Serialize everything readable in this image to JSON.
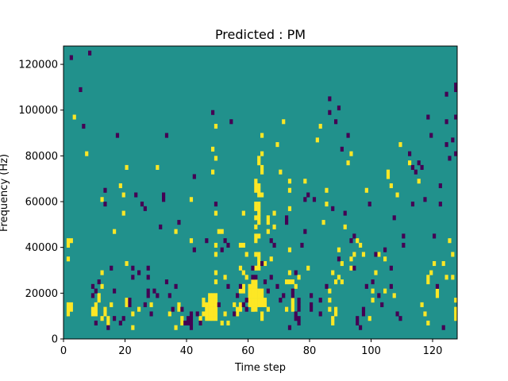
{
  "chart_data": {
    "type": "heatmap",
    "title": "Predicted : PM",
    "xlabel": "Time step",
    "ylabel": "Frequency (Hz)",
    "xlim": [
      0,
      128
    ],
    "ylim": [
      0,
      128000
    ],
    "xticks": [
      0,
      20,
      40,
      60,
      80,
      100,
      120
    ],
    "yticks": [
      0,
      20000,
      40000,
      60000,
      80000,
      100000,
      120000
    ],
    "xtick_labels": [
      "0",
      "20",
      "40",
      "60",
      "80",
      "100",
      "120"
    ],
    "ytick_labels": [
      "0",
      "20000",
      "40000",
      "60000",
      "80000",
      "100000",
      "120000"
    ],
    "grid": false,
    "legend": "none",
    "colors": {
      "background_value": "#21918c",
      "high_value": "#fde725",
      "low_value": "#440154",
      "frame": "#000000"
    },
    "cell_size": {
      "time_steps": 1,
      "frequency_hz": 2000
    },
    "yellow_cells": [
      [
        1,
        42
      ],
      [
        2,
        42
      ],
      [
        1,
        40
      ],
      [
        1,
        34
      ],
      [
        1,
        14
      ],
      [
        2,
        14
      ],
      [
        1,
        12
      ],
      [
        2,
        12
      ],
      [
        1,
        10
      ],
      [
        3,
        96
      ],
      [
        7,
        80
      ],
      [
        9,
        12
      ],
      [
        10,
        12
      ],
      [
        9,
        10
      ],
      [
        10,
        10
      ],
      [
        10,
        14
      ],
      [
        11,
        16
      ],
      [
        11,
        18
      ],
      [
        12,
        28
      ],
      [
        12,
        22
      ],
      [
        12,
        60
      ],
      [
        12,
        8
      ],
      [
        13,
        12
      ],
      [
        13,
        10
      ],
      [
        14,
        6
      ],
      [
        14,
        8
      ],
      [
        15,
        14
      ],
      [
        19,
        62
      ],
      [
        20,
        14
      ],
      [
        20,
        16
      ],
      [
        18,
        66
      ],
      [
        16,
        46
      ],
      [
        19,
        54
      ],
      [
        20,
        32
      ],
      [
        20,
        74
      ],
      [
        22,
        4
      ],
      [
        22,
        10
      ],
      [
        24,
        12
      ],
      [
        28,
        14
      ],
      [
        30,
        74
      ],
      [
        34,
        10
      ],
      [
        36,
        4
      ],
      [
        36,
        46
      ],
      [
        37,
        14
      ],
      [
        37,
        12
      ],
      [
        38,
        6
      ],
      [
        38,
        8
      ],
      [
        41,
        60
      ],
      [
        41,
        42
      ],
      [
        44,
        8
      ],
      [
        44,
        6
      ],
      [
        45,
        14
      ],
      [
        45,
        16
      ],
      [
        45,
        10
      ],
      [
        46,
        14
      ],
      [
        46,
        12
      ],
      [
        46,
        10
      ],
      [
        46,
        8
      ],
      [
        47,
        18
      ],
      [
        47,
        16
      ],
      [
        47,
        14
      ],
      [
        47,
        12
      ],
      [
        47,
        10
      ],
      [
        47,
        8
      ],
      [
        48,
        16
      ],
      [
        48,
        18
      ],
      [
        48,
        14
      ],
      [
        48,
        12
      ],
      [
        48,
        10
      ],
      [
        48,
        8
      ],
      [
        49,
        54
      ],
      [
        49,
        40
      ],
      [
        49,
        36
      ],
      [
        49,
        28
      ],
      [
        49,
        24
      ],
      [
        49,
        16
      ],
      [
        49,
        14
      ],
      [
        49,
        12
      ],
      [
        49,
        10
      ],
      [
        49,
        8
      ],
      [
        49,
        18
      ],
      [
        48,
        82
      ],
      [
        48,
        72
      ],
      [
        49,
        78
      ],
      [
        49,
        92
      ],
      [
        51,
        46
      ],
      [
        50,
        46
      ],
      [
        52,
        26
      ],
      [
        52,
        10
      ],
      [
        51,
        6
      ],
      [
        53,
        6
      ],
      [
        55,
        14
      ],
      [
        56,
        10
      ],
      [
        56,
        12
      ],
      [
        57,
        14
      ],
      [
        57,
        12
      ],
      [
        57,
        20
      ],
      [
        57,
        30
      ],
      [
        57,
        40
      ],
      [
        58,
        28
      ],
      [
        58,
        20
      ],
      [
        58,
        22
      ],
      [
        58,
        54
      ],
      [
        58,
        40
      ],
      [
        59,
        36
      ],
      [
        59,
        26
      ],
      [
        60,
        20
      ],
      [
        60,
        22
      ],
      [
        60,
        16
      ],
      [
        60,
        14
      ],
      [
        60,
        18
      ],
      [
        61,
        22
      ],
      [
        61,
        20
      ],
      [
        61,
        18
      ],
      [
        61,
        16
      ],
      [
        61,
        14
      ],
      [
        61,
        12
      ],
      [
        61,
        24
      ],
      [
        61,
        12
      ],
      [
        62,
        24
      ],
      [
        62,
        22
      ],
      [
        62,
        20
      ],
      [
        62,
        18
      ],
      [
        62,
        16
      ],
      [
        62,
        14
      ],
      [
        62,
        12
      ],
      [
        62,
        30
      ],
      [
        62,
        36
      ],
      [
        62,
        44
      ],
      [
        62,
        48
      ],
      [
        62,
        42
      ],
      [
        62,
        52
      ],
      [
        62,
        56
      ],
      [
        62,
        58
      ],
      [
        62,
        64
      ],
      [
        62,
        66
      ],
      [
        62,
        68
      ],
      [
        63,
        20
      ],
      [
        63,
        18
      ],
      [
        63,
        16
      ],
      [
        63,
        14
      ],
      [
        63,
        30
      ],
      [
        63,
        32
      ],
      [
        63,
        34
      ],
      [
        63,
        36
      ],
      [
        63,
        44
      ],
      [
        63,
        50
      ],
      [
        63,
        52
      ],
      [
        63,
        54
      ],
      [
        63,
        56
      ],
      [
        63,
        58
      ],
      [
        63,
        64
      ],
      [
        63,
        66
      ],
      [
        63,
        76
      ],
      [
        63,
        78
      ],
      [
        63,
        62
      ],
      [
        64,
        62
      ],
      [
        64,
        16
      ],
      [
        64,
        14
      ],
      [
        64,
        18
      ],
      [
        64,
        20
      ],
      [
        64,
        8
      ],
      [
        64,
        10
      ],
      [
        64,
        72
      ],
      [
        64,
        74
      ],
      [
        64,
        80
      ],
      [
        64,
        88
      ],
      [
        65,
        32
      ],
      [
        65,
        14
      ],
      [
        65,
        16
      ],
      [
        66,
        46
      ],
      [
        66,
        50
      ],
      [
        66,
        52
      ],
      [
        66,
        12
      ],
      [
        67,
        34
      ],
      [
        68,
        48
      ],
      [
        68,
        54
      ],
      [
        69,
        84
      ],
      [
        71,
        94
      ],
      [
        70,
        72
      ],
      [
        72,
        12
      ],
      [
        73,
        64
      ],
      [
        73,
        68
      ],
      [
        73,
        56
      ],
      [
        73,
        38
      ],
      [
        73,
        28
      ],
      [
        72,
        24
      ],
      [
        73,
        24
      ],
      [
        74,
        24
      ],
      [
        74,
        16
      ],
      [
        74,
        14
      ],
      [
        74,
        12
      ],
      [
        75,
        22
      ],
      [
        76,
        26
      ],
      [
        78,
        68
      ],
      [
        79,
        30
      ],
      [
        82,
        86
      ],
      [
        83,
        92
      ],
      [
        84,
        50
      ],
      [
        85,
        58
      ],
      [
        85,
        64
      ],
      [
        86,
        12
      ],
      [
        86,
        16
      ],
      [
        86,
        20
      ],
      [
        87,
        8
      ],
      [
        87,
        6
      ],
      [
        87,
        28
      ],
      [
        88,
        24
      ],
      [
        88,
        10
      ],
      [
        88,
        12
      ],
      [
        89,
        38
      ],
      [
        89,
        26
      ],
      [
        90,
        24
      ],
      [
        90,
        32
      ],
      [
        91,
        48
      ],
      [
        92,
        76
      ],
      [
        93,
        80
      ],
      [
        93,
        30
      ],
      [
        93,
        34
      ],
      [
        94,
        36
      ],
      [
        95,
        42
      ],
      [
        96,
        40
      ],
      [
        97,
        36
      ],
      [
        98,
        64
      ],
      [
        99,
        8
      ],
      [
        100,
        16
      ],
      [
        100,
        20
      ],
      [
        101,
        28
      ],
      [
        102,
        36
      ],
      [
        104,
        20
      ],
      [
        104,
        34
      ],
      [
        105,
        70
      ],
      [
        105,
        72
      ],
      [
        106,
        66
      ],
      [
        107,
        18
      ],
      [
        108,
        62
      ],
      [
        109,
        84
      ],
      [
        112,
        76
      ],
      [
        115,
        68
      ],
      [
        116,
        14
      ],
      [
        117,
        10
      ],
      [
        118,
        6
      ],
      [
        118,
        24
      ],
      [
        118,
        26
      ],
      [
        119,
        28
      ],
      [
        120,
        32
      ],
      [
        121,
        20
      ],
      [
        121,
        18
      ],
      [
        123,
        32
      ],
      [
        124,
        26
      ],
      [
        125,
        42
      ],
      [
        126,
        36
      ],
      [
        126,
        26
      ],
      [
        127,
        16
      ],
      [
        127,
        12
      ],
      [
        127,
        10
      ],
      [
        127,
        8
      ]
    ],
    "purple_cells": [
      [
        2,
        122
      ],
      [
        5,
        108
      ],
      [
        6,
        92
      ],
      [
        8,
        124
      ],
      [
        9,
        18
      ],
      [
        9,
        22
      ],
      [
        10,
        20
      ],
      [
        10,
        6
      ],
      [
        11,
        24
      ],
      [
        13,
        58
      ],
      [
        13,
        64
      ],
      [
        14,
        4
      ],
      [
        15,
        30
      ],
      [
        16,
        20
      ],
      [
        16,
        8
      ],
      [
        17,
        88
      ],
      [
        18,
        6
      ],
      [
        19,
        8
      ],
      [
        21,
        14
      ],
      [
        21,
        16
      ],
      [
        22,
        30
      ],
      [
        22,
        26
      ],
      [
        23,
        62
      ],
      [
        24,
        28
      ],
      [
        25,
        58
      ],
      [
        26,
        56
      ],
      [
        26,
        14
      ],
      [
        27,
        30
      ],
      [
        27,
        26
      ],
      [
        27,
        18
      ],
      [
        27,
        20
      ],
      [
        28,
        10
      ],
      [
        29,
        20
      ],
      [
        30,
        18
      ],
      [
        31,
        48
      ],
      [
        32,
        62
      ],
      [
        32,
        60
      ],
      [
        33,
        88
      ],
      [
        33,
        24
      ],
      [
        34,
        18
      ],
      [
        35,
        12
      ],
      [
        36,
        22
      ],
      [
        37,
        50
      ],
      [
        38,
        12
      ],
      [
        39,
        6
      ],
      [
        40,
        8
      ],
      [
        40,
        6
      ],
      [
        41,
        10
      ],
      [
        41,
        8
      ],
      [
        41,
        6
      ],
      [
        41,
        4
      ],
      [
        42,
        70
      ],
      [
        42,
        38
      ],
      [
        43,
        10
      ],
      [
        44,
        6
      ],
      [
        46,
        42
      ],
      [
        48,
        98
      ],
      [
        49,
        58
      ],
      [
        50,
        14
      ],
      [
        51,
        38
      ],
      [
        52,
        42
      ],
      [
        53,
        40
      ],
      [
        53,
        22
      ],
      [
        54,
        94
      ],
      [
        55,
        10
      ],
      [
        56,
        18
      ],
      [
        57,
        22
      ],
      [
        58,
        14
      ],
      [
        59,
        12
      ],
      [
        59,
        16
      ],
      [
        61,
        26
      ],
      [
        61,
        30
      ],
      [
        62,
        26
      ],
      [
        64,
        32
      ],
      [
        65,
        24
      ],
      [
        66,
        20
      ],
      [
        67,
        26
      ],
      [
        67,
        42
      ],
      [
        68,
        40
      ],
      [
        69,
        22
      ],
      [
        70,
        16
      ],
      [
        71,
        18
      ],
      [
        72,
        52
      ],
      [
        72,
        50
      ],
      [
        73,
        4
      ],
      [
        74,
        18
      ],
      [
        74,
        20
      ],
      [
        75,
        8
      ],
      [
        75,
        10
      ],
      [
        75,
        28
      ],
      [
        76,
        14
      ],
      [
        76,
        12
      ],
      [
        76,
        6
      ],
      [
        76,
        8
      ],
      [
        76,
        16
      ],
      [
        77,
        40
      ],
      [
        78,
        46
      ],
      [
        78,
        60
      ],
      [
        79,
        62
      ],
      [
        80,
        12
      ],
      [
        80,
        14
      ],
      [
        80,
        18
      ],
      [
        81,
        60
      ],
      [
        83,
        16
      ],
      [
        83,
        10
      ],
      [
        85,
        22
      ],
      [
        86,
        98
      ],
      [
        86,
        104
      ],
      [
        87,
        56
      ],
      [
        88,
        94
      ],
      [
        89,
        100
      ],
      [
        89,
        34
      ],
      [
        90,
        82
      ],
      [
        91,
        54
      ],
      [
        92,
        88
      ],
      [
        93,
        42
      ],
      [
        94,
        44
      ],
      [
        94,
        30
      ],
      [
        95,
        8
      ],
      [
        95,
        6
      ],
      [
        96,
        4
      ],
      [
        97,
        12
      ],
      [
        97,
        10
      ],
      [
        98,
        22
      ],
      [
        99,
        58
      ],
      [
        100,
        24
      ],
      [
        101,
        36
      ],
      [
        102,
        18
      ],
      [
        103,
        14
      ],
      [
        104,
        38
      ],
      [
        106,
        22
      ],
      [
        106,
        30
      ],
      [
        107,
        52
      ],
      [
        108,
        10
      ],
      [
        109,
        8
      ],
      [
        110,
        44
      ],
      [
        110,
        40
      ],
      [
        112,
        80
      ],
      [
        113,
        74
      ],
      [
        113,
        58
      ],
      [
        114,
        72
      ],
      [
        115,
        76
      ],
      [
        116,
        74
      ],
      [
        117,
        60
      ],
      [
        118,
        96
      ],
      [
        119,
        88
      ],
      [
        120,
        44
      ],
      [
        121,
        22
      ],
      [
        122,
        66
      ],
      [
        122,
        58
      ],
      [
        123,
        4
      ],
      [
        124,
        106
      ],
      [
        124,
        94
      ],
      [
        124,
        84
      ],
      [
        125,
        78
      ],
      [
        126,
        86
      ],
      [
        127,
        80
      ],
      [
        127,
        96
      ],
      [
        127,
        108
      ],
      [
        127,
        110
      ]
    ]
  }
}
